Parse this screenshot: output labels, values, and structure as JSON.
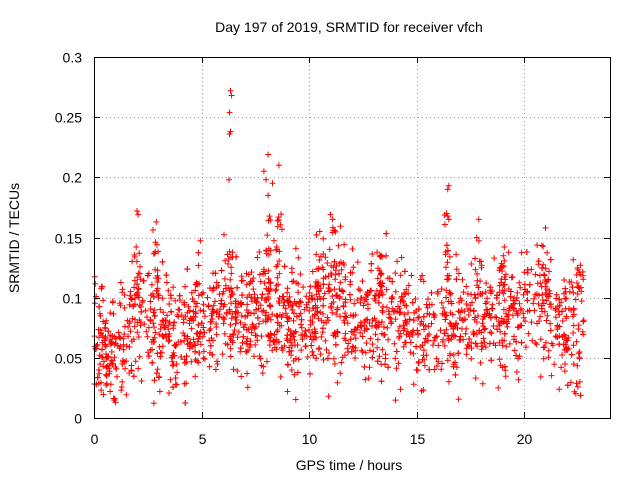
{
  "chart_data": {
    "type": "scatter",
    "title": "Day 197 of 2019, SRMTID for receiver vfch",
    "xlabel": "GPS time / hours",
    "ylabel": "SRMTID / TECUs",
    "xlim": [
      0,
      24
    ],
    "ylim": [
      0,
      0.3
    ],
    "x_ticks": [
      0,
      5,
      10,
      15,
      20
    ],
    "x_tick_labels": [
      "0",
      "5",
      "10",
      "15",
      "20"
    ],
    "y_ticks": [
      0,
      0.05,
      0.1,
      0.15,
      0.2,
      0.25,
      0.3
    ],
    "y_tick_labels": [
      "0",
      "0.05",
      "0.1",
      "0.15",
      "0.2",
      "0.25",
      "0.3"
    ],
    "grid": true,
    "marker": "plus",
    "point_color": "#ff0000",
    "time_range": [
      0,
      22.8
    ],
    "baseline_profile": [
      [
        0.0,
        0.065
      ],
      [
        1.0,
        0.05
      ],
      [
        2.0,
        0.08
      ],
      [
        3.0,
        0.075
      ],
      [
        4.0,
        0.065
      ],
      [
        5.0,
        0.085
      ],
      [
        6.0,
        0.085
      ],
      [
        7.0,
        0.08
      ],
      [
        8.0,
        0.09
      ],
      [
        9.0,
        0.08
      ],
      [
        10.0,
        0.08
      ],
      [
        11.0,
        0.09
      ],
      [
        12.0,
        0.08
      ],
      [
        13.0,
        0.085
      ],
      [
        14.0,
        0.085
      ],
      [
        15.0,
        0.08
      ],
      [
        16.0,
        0.075
      ],
      [
        17.0,
        0.08
      ],
      [
        18.0,
        0.08
      ],
      [
        19.0,
        0.085
      ],
      [
        20.0,
        0.09
      ],
      [
        21.0,
        0.09
      ],
      [
        22.0,
        0.07
      ],
      [
        22.8,
        0.07
      ]
    ],
    "spread": 0.025,
    "notable_points": [
      {
        "x": 6.35,
        "y": 0.272
      },
      {
        "x": 6.4,
        "y": 0.268
      },
      {
        "x": 6.3,
        "y": 0.254
      },
      {
        "x": 6.35,
        "y": 0.238
      },
      {
        "x": 6.3,
        "y": 0.236
      },
      {
        "x": 6.28,
        "y": 0.198
      },
      {
        "x": 8.1,
        "y": 0.219
      },
      {
        "x": 8.6,
        "y": 0.21
      },
      {
        "x": 7.9,
        "y": 0.205
      },
      {
        "x": 8.0,
        "y": 0.198
      },
      {
        "x": 8.3,
        "y": 0.195
      },
      {
        "x": 8.1,
        "y": 0.185
      },
      {
        "x": 16.5,
        "y": 0.193
      },
      {
        "x": 16.45,
        "y": 0.19
      },
      {
        "x": 16.4,
        "y": 0.17
      },
      {
        "x": 16.5,
        "y": 0.165
      },
      {
        "x": 2.0,
        "y": 0.172
      },
      {
        "x": 2.05,
        "y": 0.169
      },
      {
        "x": 11.0,
        "y": 0.169
      },
      {
        "x": 11.1,
        "y": 0.165
      },
      {
        "x": 17.9,
        "y": 0.165
      },
      {
        "x": 21.0,
        "y": 0.158
      },
      {
        "x": 2.9,
        "y": 0.163
      },
      {
        "x": 10.5,
        "y": 0.155
      },
      {
        "x": 1.0,
        "y": 0.013
      },
      {
        "x": 0.75,
        "y": 0.022
      },
      {
        "x": 9.0,
        "y": 0.022
      },
      {
        "x": 18.8,
        "y": 0.025
      },
      {
        "x": 3.8,
        "y": 0.028
      },
      {
        "x": 22.5,
        "y": 0.026
      },
      {
        "x": 22.6,
        "y": 0.03
      },
      {
        "x": 15.0,
        "y": 0.04
      }
    ]
  }
}
